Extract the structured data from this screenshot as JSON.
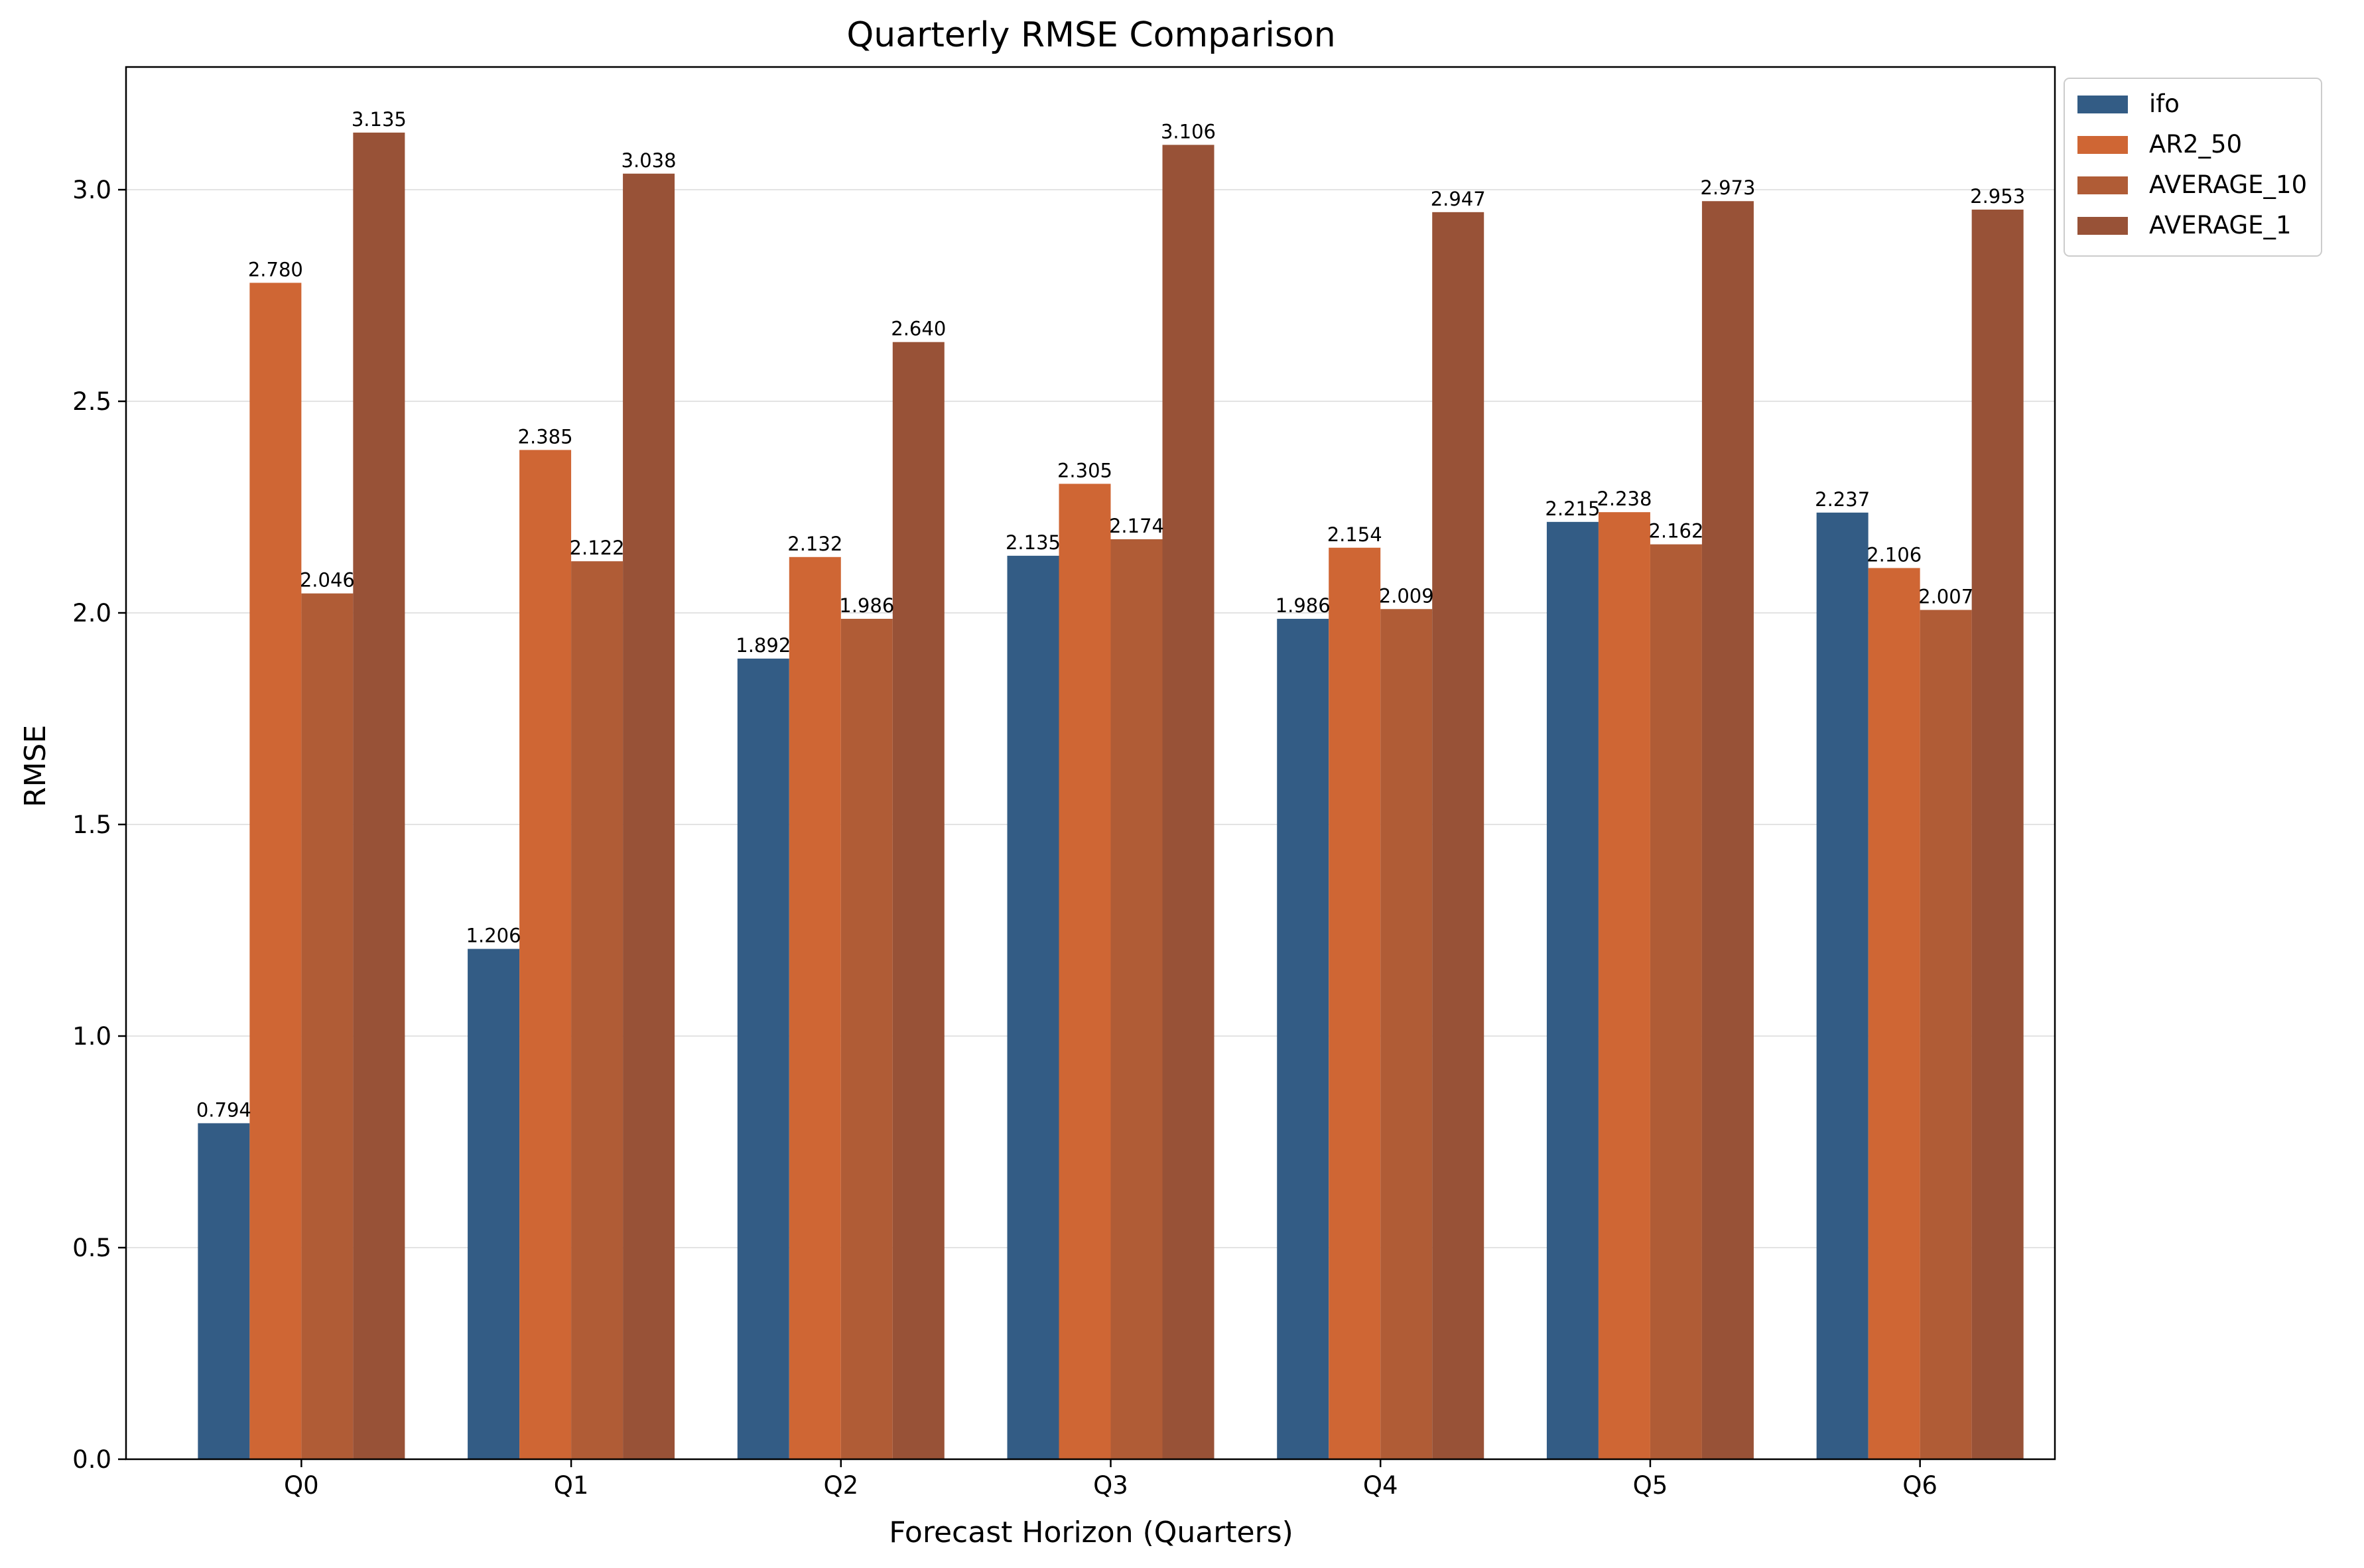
{
  "chart_data": {
    "type": "bar",
    "title": "Quarterly RMSE Comparison",
    "xlabel": "Forecast Horizon (Quarters)",
    "ylabel": "RMSE",
    "categories": [
      "Q0",
      "Q1",
      "Q2",
      "Q3",
      "Q4",
      "Q5",
      "Q6"
    ],
    "series": [
      {
        "name": "ifo",
        "color": "#335c85",
        "values": [
          0.794,
          1.206,
          1.892,
          2.135,
          1.986,
          2.215,
          2.237
        ]
      },
      {
        "name": "AR2_50",
        "color": "#cf6634",
        "values": [
          2.78,
          2.385,
          2.132,
          2.305,
          2.154,
          2.238,
          2.106
        ]
      },
      {
        "name": "AVERAGE_10",
        "color": "#b05c36",
        "values": [
          2.046,
          2.122,
          1.986,
          2.174,
          2.009,
          2.162,
          2.007
        ]
      },
      {
        "name": "AVERAGE_1",
        "color": "#985237",
        "values": [
          3.135,
          3.038,
          2.64,
          3.106,
          2.947,
          2.973,
          2.953
        ]
      }
    ],
    "data_labels": [
      [
        "0.794",
        "1.206",
        "1.892",
        "2.135",
        "1.986",
        "2.215",
        "2.237"
      ],
      [
        "2.780",
        "2.385",
        "2.132",
        "2.305",
        "2.154",
        "2.238",
        "2.106"
      ],
      [
        "2.046",
        "2.122",
        "1.986",
        "2.174",
        "2.009",
        "2.162",
        "2.007"
      ],
      [
        "3.135",
        "3.038",
        "2.640",
        "3.106",
        "2.947",
        "2.973",
        "2.953"
      ]
    ],
    "yticks": [
      "0.0",
      "0.5",
      "1.0",
      "1.5",
      "2.0",
      "2.5",
      "3.0"
    ],
    "ylim": [
      0,
      3.29
    ],
    "grid": "horizontal",
    "legend_position": "outside-top-right"
  }
}
